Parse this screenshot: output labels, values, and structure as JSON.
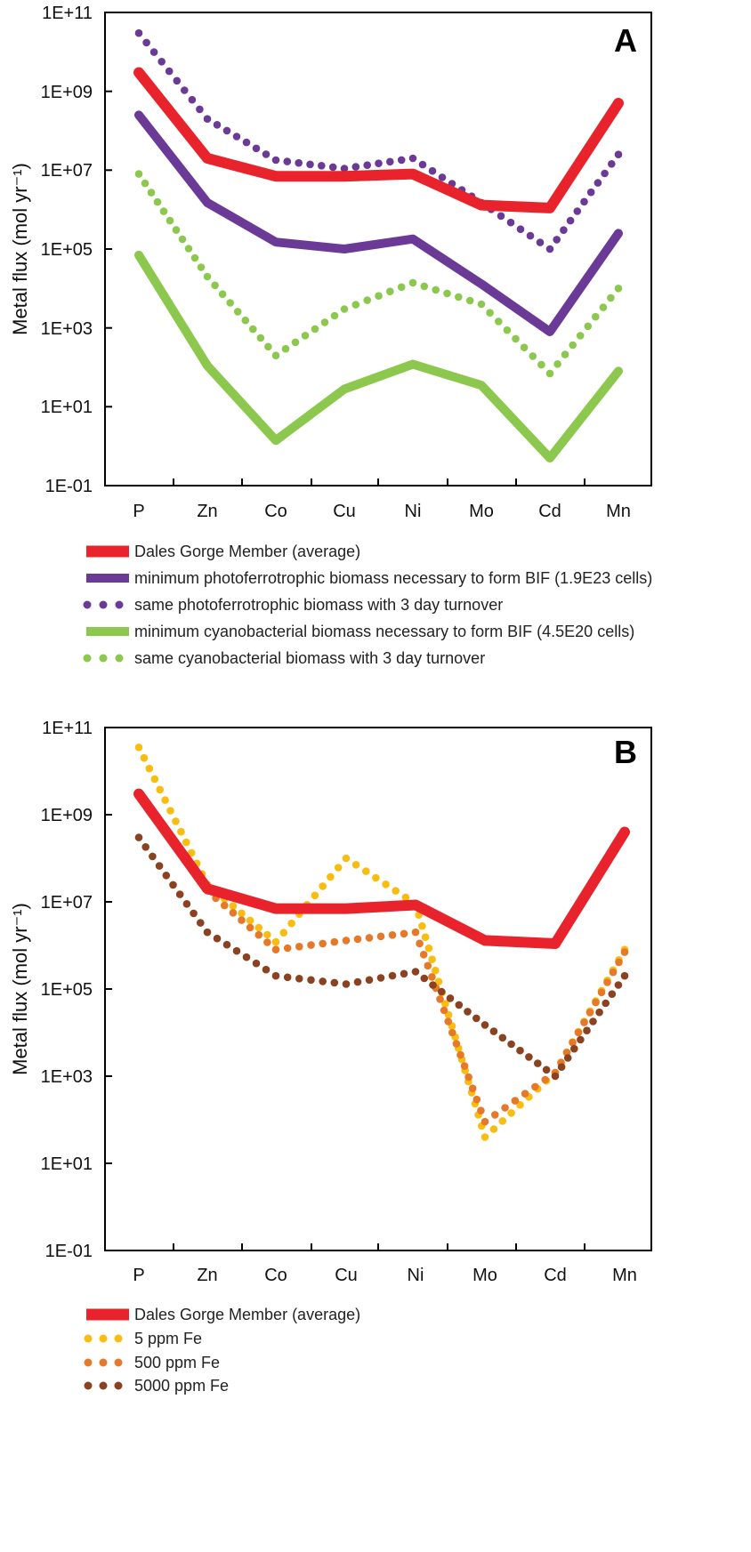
{
  "chart_data": [
    {
      "type": "line",
      "panel": "A",
      "ylabel": "Metal flux (mol yr⁻¹)",
      "yscale": "log",
      "ylim": [
        "1E-01",
        "1E+11"
      ],
      "yticks": [
        "1E+11",
        "1E+09",
        "1E+07",
        "1E+05",
        "1E+03",
        "1E+01",
        "1E-01"
      ],
      "categories": [
        "P",
        "Zn",
        "Co",
        "Cu",
        "Ni",
        "Mo",
        "Cd",
        "Mn"
      ],
      "series": [
        {
          "name": "Dales Gorge Member (average)",
          "color": "#e8232b",
          "style": "solid",
          "values": [
            3000000000.0,
            20000000.0,
            7000000.0,
            7000000.0,
            8000000.0,
            1300000.0,
            1100000.0,
            500000000.0
          ]
        },
        {
          "name": "minimum  photoferrotrophic biomass necessary to form BIF  (1.9E23 cells)",
          "color": "#6b3a97",
          "style": "solid",
          "values": [
            250000000.0,
            1500000.0,
            150000.0,
            100000.0,
            180000.0,
            13000.0,
            800,
            250000.0
          ]
        },
        {
          "name": "same photoferrotrophic biomass with 3 day turnover",
          "color": "#6b3a97",
          "style": "dotted",
          "values": [
            30000000000.0,
            200000000.0,
            18000000.0,
            11000000.0,
            20000000.0,
            1500000.0,
            100000.0,
            25000000.0
          ]
        },
        {
          "name": "minimum  cyanobacterial biomass necessary to form BIF (4.5E20 cells)",
          "color": "#8cc84e",
          "style": "solid",
          "values": [
            70000.0,
            110,
            1.4,
            28,
            120,
            35,
            0.5,
            80
          ]
        },
        {
          "name": "same cyanobacterial biomass with 3 day turnover",
          "color": "#8cc84e",
          "style": "dotted",
          "values": [
            8000000.0,
            20000.0,
            200,
            3000.0,
            14000.0,
            4000.0,
            70,
            10000.0
          ]
        }
      ]
    },
    {
      "type": "line",
      "panel": "B",
      "ylabel": "Metal flux (mol yr⁻¹)",
      "yscale": "log",
      "ylim": [
        "1E-01",
        "1E+11"
      ],
      "yticks": [
        "1E+11",
        "1E+09",
        "1E+07",
        "1E+05",
        "1E+03",
        "1E+01",
        "1E-01"
      ],
      "categories": [
        "P",
        "Zn",
        "Co",
        "Cu",
        "Ni",
        "Mo",
        "Cd",
        "Mn"
      ],
      "series": [
        {
          "name": "Dales Gorge Member (average)",
          "color": "#e8232b",
          "style": "solid",
          "values": [
            3000000000.0,
            20000000.0,
            7000000.0,
            7000000.0,
            8500000.0,
            1300000.0,
            1100000.0,
            400000000.0
          ]
        },
        {
          "name": "5 ppm Fe",
          "color": "#f9bd11",
          "style": "dotted",
          "values": [
            35000000000.0,
            25000000.0,
            1200000.0,
            100000000.0,
            9000000.0,
            40,
            1200.0,
            800000.0
          ]
        },
        {
          "name": "500 ppm Fe",
          "color": "#e6782a",
          "style": "dotted",
          "values": [
            2800000000.0,
            18000000.0,
            800000.0,
            1300000.0,
            2000000.0,
            90,
            1200.0,
            700000.0
          ]
        },
        {
          "name": "5000 ppm Fe",
          "color": "#8b4220",
          "style": "dotted",
          "values": [
            300000000.0,
            2000000.0,
            200000.0,
            130000.0,
            250000.0,
            15000.0,
            1000.0,
            200000.0
          ]
        }
      ]
    }
  ],
  "panels": {
    "a": {
      "letter": "A"
    },
    "b": {
      "letter": "B"
    }
  },
  "yticks": {
    "t11": "1E+11",
    "t9": "1E+09",
    "t7": "1E+07",
    "t5": "1E+05",
    "t3": "1E+03",
    "t1": "1E+01",
    "tm1": "1E-01"
  },
  "categories": {
    "c0": "P",
    "c1": "Zn",
    "c2": "Co",
    "c3": "Cu",
    "c4": "Ni",
    "c5": "Mo",
    "c6": "Cd",
    "c7": "Mn"
  },
  "ylabel": "Metal flux (mol yr⁻¹)",
  "legend_a": {
    "dales": "Dales Gorge Member (average)",
    "photo_min": "minimum  photoferrotrophic biomass necessary to form BIF  (1.9E23 cells)",
    "photo_turn": "same photoferrotrophic biomass with 3 day turnover",
    "cyano_min": "minimum  cyanobacterial biomass necessary to form BIF (4.5E20 cells)",
    "cyano_turn": "same cyanobacterial biomass with 3 day turnover"
  },
  "legend_b": {
    "dales": "Dales Gorge Member (average)",
    "fe5": "5 ppm Fe",
    "fe500": "500 ppm Fe",
    "fe5000": "5000 ppm Fe"
  }
}
